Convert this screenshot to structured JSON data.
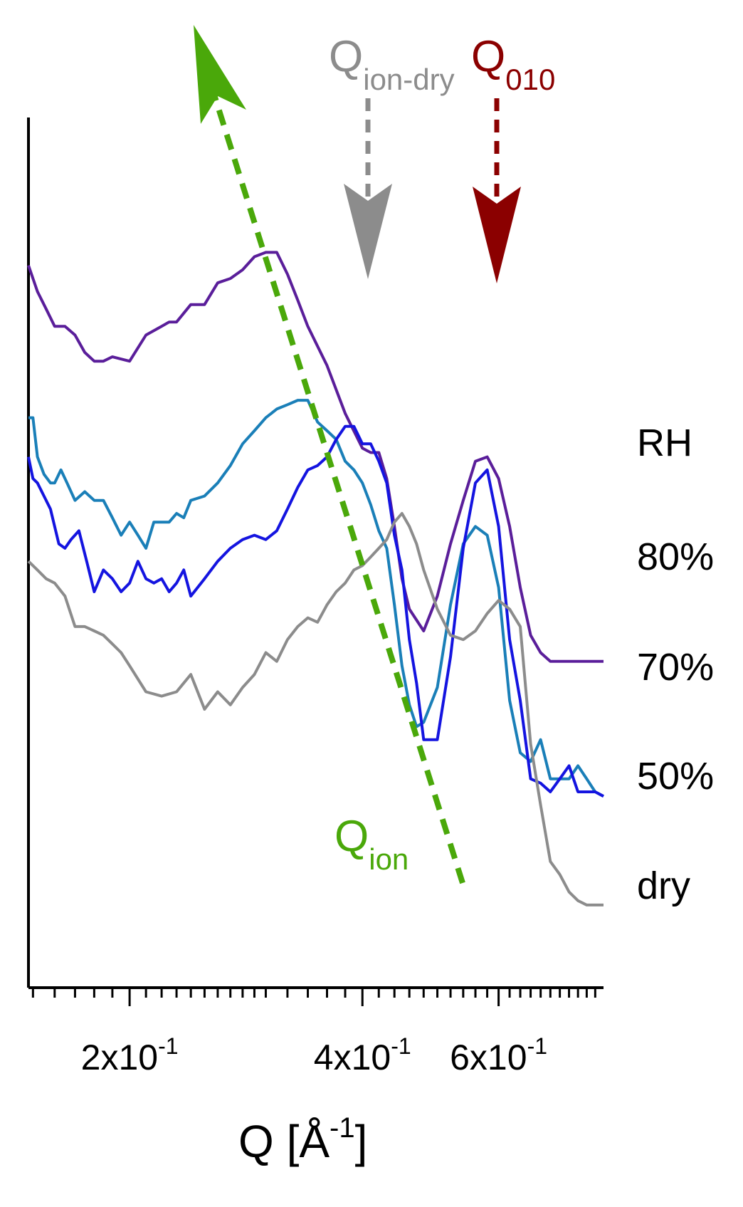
{
  "chart_data": {
    "type": "line",
    "x_scale": "log",
    "xlim": [
      0.148,
      0.82
    ],
    "y_scale": "linear",
    "ylim": [
      0,
      100
    ],
    "y_ticks_shown": false,
    "xlabel": {
      "base": "Q [Å",
      "sup": "-1",
      "close": "]"
    },
    "x_ticks": {
      "major": [
        {
          "value": 0.2,
          "mant": "2x10",
          "exp": "-1"
        },
        {
          "value": 0.4,
          "mant": "4x10",
          "exp": "-1"
        },
        {
          "value": 0.6,
          "mant": "6x10",
          "exp": "-1"
        }
      ],
      "minor": [
        0.15,
        0.16,
        0.17,
        0.18,
        0.19,
        0.21,
        0.22,
        0.23,
        0.24,
        0.25,
        0.26,
        0.27,
        0.28,
        0.29,
        0.3,
        0.32,
        0.34,
        0.36,
        0.38,
        0.42,
        0.44,
        0.46,
        0.48,
        0.5,
        0.52,
        0.54,
        0.56,
        0.58,
        0.62,
        0.64,
        0.66,
        0.68,
        0.7,
        0.72,
        0.74,
        0.76,
        0.78,
        0.8
      ]
    },
    "legend": {
      "title": "RH",
      "entries": [
        "80%",
        "70%",
        "50%",
        "dry"
      ],
      "placement": "right"
    },
    "series": [
      {
        "color": "#5a1e9a",
        "points": [
          [
            0.148,
            83.0
          ],
          [
            0.152,
            80.0
          ],
          [
            0.156,
            78.0
          ],
          [
            0.16,
            76.0
          ],
          [
            0.165,
            76.0
          ],
          [
            0.17,
            75.0
          ],
          [
            0.175,
            73.0
          ],
          [
            0.18,
            72.0
          ],
          [
            0.185,
            72.0
          ],
          [
            0.19,
            72.5
          ],
          [
            0.2,
            72.0
          ],
          [
            0.21,
            75.0
          ],
          [
            0.22,
            76.0
          ],
          [
            0.225,
            76.5
          ],
          [
            0.23,
            76.5
          ],
          [
            0.24,
            78.5
          ],
          [
            0.25,
            78.5
          ],
          [
            0.26,
            81.0
          ],
          [
            0.27,
            81.5
          ],
          [
            0.28,
            82.5
          ],
          [
            0.29,
            84.0
          ],
          [
            0.3,
            84.5
          ],
          [
            0.31,
            84.5
          ],
          [
            0.32,
            82.0
          ],
          [
            0.33,
            79.0
          ],
          [
            0.34,
            76.0
          ],
          [
            0.36,
            71.5
          ],
          [
            0.38,
            66.0
          ],
          [
            0.4,
            62.0
          ],
          [
            0.41,
            61.5
          ],
          [
            0.42,
            61.5
          ],
          [
            0.43,
            58.5
          ],
          [
            0.44,
            53.0
          ],
          [
            0.45,
            47.0
          ],
          [
            0.46,
            43.5
          ],
          [
            0.48,
            41.0
          ],
          [
            0.5,
            45.0
          ],
          [
            0.52,
            51.0
          ],
          [
            0.54,
            56.0
          ],
          [
            0.56,
            60.5
          ],
          [
            0.58,
            61.0
          ],
          [
            0.6,
            58.5
          ],
          [
            0.62,
            53.0
          ],
          [
            0.64,
            46.0
          ],
          [
            0.66,
            40.5
          ],
          [
            0.68,
            38.5
          ],
          [
            0.7,
            37.5
          ],
          [
            0.72,
            37.5
          ],
          [
            0.74,
            37.5
          ],
          [
            0.76,
            37.5
          ],
          [
            0.78,
            37.5
          ],
          [
            0.8,
            37.5
          ],
          [
            0.82,
            37.5
          ]
        ]
      },
      {
        "color": "#1a7fb8",
        "points": [
          [
            0.148,
            65.5
          ],
          [
            0.15,
            65.5
          ],
          [
            0.152,
            61.0
          ],
          [
            0.155,
            59.0
          ],
          [
            0.158,
            58.0
          ],
          [
            0.16,
            58.0
          ],
          [
            0.163,
            59.5
          ],
          [
            0.166,
            58.0
          ],
          [
            0.17,
            56.0
          ],
          [
            0.175,
            57.0
          ],
          [
            0.18,
            56.0
          ],
          [
            0.185,
            56.0
          ],
          [
            0.19,
            54.0
          ],
          [
            0.195,
            52.0
          ],
          [
            0.2,
            53.5
          ],
          [
            0.205,
            52.0
          ],
          [
            0.21,
            50.5
          ],
          [
            0.215,
            53.5
          ],
          [
            0.22,
            53.5
          ],
          [
            0.225,
            53.5
          ],
          [
            0.23,
            54.5
          ],
          [
            0.235,
            54.0
          ],
          [
            0.24,
            56.0
          ],
          [
            0.25,
            56.5
          ],
          [
            0.26,
            58.0
          ],
          [
            0.27,
            60.0
          ],
          [
            0.28,
            62.5
          ],
          [
            0.29,
            64.0
          ],
          [
            0.3,
            65.5
          ],
          [
            0.31,
            66.5
          ],
          [
            0.32,
            67.0
          ],
          [
            0.33,
            67.5
          ],
          [
            0.34,
            67.5
          ],
          [
            0.35,
            65.0
          ],
          [
            0.36,
            64.0
          ],
          [
            0.37,
            63.0
          ],
          [
            0.38,
            60.5
          ],
          [
            0.39,
            59.5
          ],
          [
            0.4,
            58.0
          ],
          [
            0.41,
            55.5
          ],
          [
            0.42,
            52.5
          ],
          [
            0.43,
            50.5
          ],
          [
            0.44,
            44.0
          ],
          [
            0.45,
            37.0
          ],
          [
            0.46,
            32.5
          ],
          [
            0.47,
            30.0
          ],
          [
            0.48,
            30.5
          ],
          [
            0.5,
            34.5
          ],
          [
            0.52,
            44.0
          ],
          [
            0.54,
            51.0
          ],
          [
            0.56,
            53.0
          ],
          [
            0.58,
            52.0
          ],
          [
            0.6,
            46.0
          ],
          [
            0.62,
            33.0
          ],
          [
            0.64,
            27.0
          ],
          [
            0.66,
            26.0
          ],
          [
            0.68,
            28.5
          ],
          [
            0.7,
            24.0
          ],
          [
            0.72,
            24.0
          ],
          [
            0.74,
            24.0
          ],
          [
            0.76,
            25.5
          ],
          [
            0.78,
            24.0
          ],
          [
            0.8,
            22.5
          ],
          [
            0.82,
            22.0
          ]
        ]
      },
      {
        "color": "#1414e0",
        "points": [
          [
            0.148,
            61.0
          ],
          [
            0.15,
            58.5
          ],
          [
            0.152,
            58.0
          ],
          [
            0.155,
            56.5
          ],
          [
            0.158,
            55.0
          ],
          [
            0.162,
            51.0
          ],
          [
            0.165,
            50.5
          ],
          [
            0.168,
            51.5
          ],
          [
            0.172,
            52.5
          ],
          [
            0.176,
            49.0
          ],
          [
            0.18,
            45.5
          ],
          [
            0.185,
            48.0
          ],
          [
            0.19,
            47.0
          ],
          [
            0.195,
            45.5
          ],
          [
            0.2,
            46.5
          ],
          [
            0.205,
            49.0
          ],
          [
            0.21,
            47.0
          ],
          [
            0.215,
            46.5
          ],
          [
            0.22,
            47.0
          ],
          [
            0.225,
            45.5
          ],
          [
            0.23,
            46.5
          ],
          [
            0.235,
            48.0
          ],
          [
            0.24,
            45.0
          ],
          [
            0.25,
            47.0
          ],
          [
            0.26,
            49.0
          ],
          [
            0.27,
            50.5
          ],
          [
            0.28,
            51.5
          ],
          [
            0.29,
            52.0
          ],
          [
            0.3,
            51.5
          ],
          [
            0.31,
            52.5
          ],
          [
            0.32,
            55.0
          ],
          [
            0.33,
            57.5
          ],
          [
            0.34,
            59.5
          ],
          [
            0.35,
            60.0
          ],
          [
            0.36,
            61.0
          ],
          [
            0.37,
            63.0
          ],
          [
            0.38,
            64.5
          ],
          [
            0.39,
            64.5
          ],
          [
            0.4,
            62.5
          ],
          [
            0.41,
            62.5
          ],
          [
            0.42,
            60.5
          ],
          [
            0.43,
            58.0
          ],
          [
            0.44,
            52.0
          ],
          [
            0.45,
            48.0
          ],
          [
            0.46,
            40.0
          ],
          [
            0.47,
            35.0
          ],
          [
            0.48,
            28.5
          ],
          [
            0.5,
            28.5
          ],
          [
            0.52,
            38.0
          ],
          [
            0.54,
            50.5
          ],
          [
            0.56,
            58.0
          ],
          [
            0.58,
            59.5
          ],
          [
            0.6,
            53.0
          ],
          [
            0.62,
            40.0
          ],
          [
            0.64,
            33.0
          ],
          [
            0.66,
            24.0
          ],
          [
            0.68,
            23.5
          ],
          [
            0.7,
            22.5
          ],
          [
            0.72,
            24.0
          ],
          [
            0.74,
            25.5
          ],
          [
            0.76,
            22.5
          ],
          [
            0.78,
            22.5
          ],
          [
            0.8,
            22.5
          ],
          [
            0.82,
            22.0
          ]
        ]
      },
      {
        "color": "#8c8c8c",
        "points": [
          [
            0.148,
            49.0
          ],
          [
            0.152,
            48.0
          ],
          [
            0.156,
            47.0
          ],
          [
            0.16,
            46.5
          ],
          [
            0.165,
            45.0
          ],
          [
            0.17,
            41.5
          ],
          [
            0.175,
            41.5
          ],
          [
            0.18,
            41.0
          ],
          [
            0.185,
            40.5
          ],
          [
            0.19,
            39.5
          ],
          [
            0.195,
            38.5
          ],
          [
            0.2,
            37.0
          ],
          [
            0.21,
            34.0
          ],
          [
            0.22,
            33.5
          ],
          [
            0.23,
            34.0
          ],
          [
            0.24,
            36.0
          ],
          [
            0.25,
            32.0
          ],
          [
            0.26,
            34.0
          ],
          [
            0.27,
            32.5
          ],
          [
            0.28,
            34.5
          ],
          [
            0.29,
            36.0
          ],
          [
            0.3,
            38.5
          ],
          [
            0.31,
            37.5
          ],
          [
            0.32,
            40.0
          ],
          [
            0.33,
            41.5
          ],
          [
            0.34,
            42.5
          ],
          [
            0.35,
            42.0
          ],
          [
            0.36,
            44.0
          ],
          [
            0.37,
            45.5
          ],
          [
            0.38,
            46.5
          ],
          [
            0.39,
            48.0
          ],
          [
            0.4,
            48.5
          ],
          [
            0.41,
            49.5
          ],
          [
            0.42,
            50.5
          ],
          [
            0.43,
            51.5
          ],
          [
            0.44,
            53.5
          ],
          [
            0.45,
            54.5
          ],
          [
            0.46,
            53.0
          ],
          [
            0.47,
            51.0
          ],
          [
            0.48,
            48.0
          ],
          [
            0.5,
            43.5
          ],
          [
            0.52,
            40.5
          ],
          [
            0.54,
            40.0
          ],
          [
            0.56,
            41.0
          ],
          [
            0.58,
            43.0
          ],
          [
            0.6,
            44.5
          ],
          [
            0.62,
            43.5
          ],
          [
            0.64,
            41.5
          ],
          [
            0.66,
            28.0
          ],
          [
            0.68,
            21.0
          ],
          [
            0.7,
            14.5
          ],
          [
            0.72,
            13.0
          ],
          [
            0.74,
            11.0
          ],
          [
            0.76,
            10.0
          ],
          [
            0.78,
            9.5
          ],
          [
            0.8,
            9.5
          ],
          [
            0.82,
            9.5
          ]
        ]
      }
    ],
    "annotations": [
      {
        "main": "Q",
        "sub": "ion-dry",
        "color": "#8c8c8c"
      },
      {
        "main": "Q",
        "sub": "010",
        "color": "#8b0000"
      },
      {
        "main": "Q",
        "sub": "ion",
        "color": "#4aa80a"
      }
    ]
  }
}
